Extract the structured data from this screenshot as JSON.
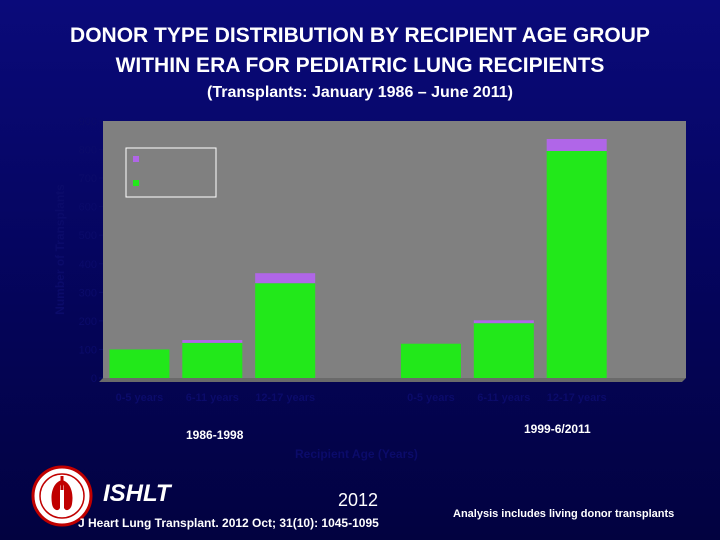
{
  "header": {
    "title_line1": "DONOR TYPE DISTRIBUTION BY RECIPIENT AGE GROUP",
    "title_line2": "WITHIN ERA FOR PEDIATRIC LUNG RECIPIENTS",
    "subtitle": "(Transplants: January 1986 – June 2011)"
  },
  "chart_data": {
    "type": "bar",
    "stacked": true,
    "ylabel": "Number of Transplants",
    "xlabel": "Recipient Age (Years)",
    "ylim": [
      0,
      900
    ],
    "yticks": [
      0,
      100,
      200,
      300,
      400,
      500,
      600,
      700,
      800,
      900
    ],
    "groups": [
      {
        "label": "1986-1998",
        "categories": [
          "0-5 years",
          "6-11 years",
          "12-17 years"
        ]
      },
      {
        "label": "1999-6/2011",
        "categories": [
          "0-5 years",
          "6-11 years",
          "12-17 years"
        ]
      }
    ],
    "series": [
      {
        "color": "#22e81a",
        "values": [
          100,
          123,
          332,
          120,
          192,
          795
        ]
      },
      {
        "color": "#b066e8",
        "values": [
          0,
          10,
          35,
          0,
          10,
          42
        ]
      }
    ],
    "legend_position": "top-left",
    "grid": false
  },
  "footer": {
    "logo_text": "ISHLT",
    "year": "2012",
    "citation": "J Heart Lung Transplant. 2012 Oct; 31(10): 1045-1095",
    "note": "Analysis includes living donor transplants"
  },
  "colors": {
    "plot_background": "#808080",
    "axis_text": "#0b0b6a",
    "green": "#22e81a",
    "purple": "#b066e8"
  }
}
